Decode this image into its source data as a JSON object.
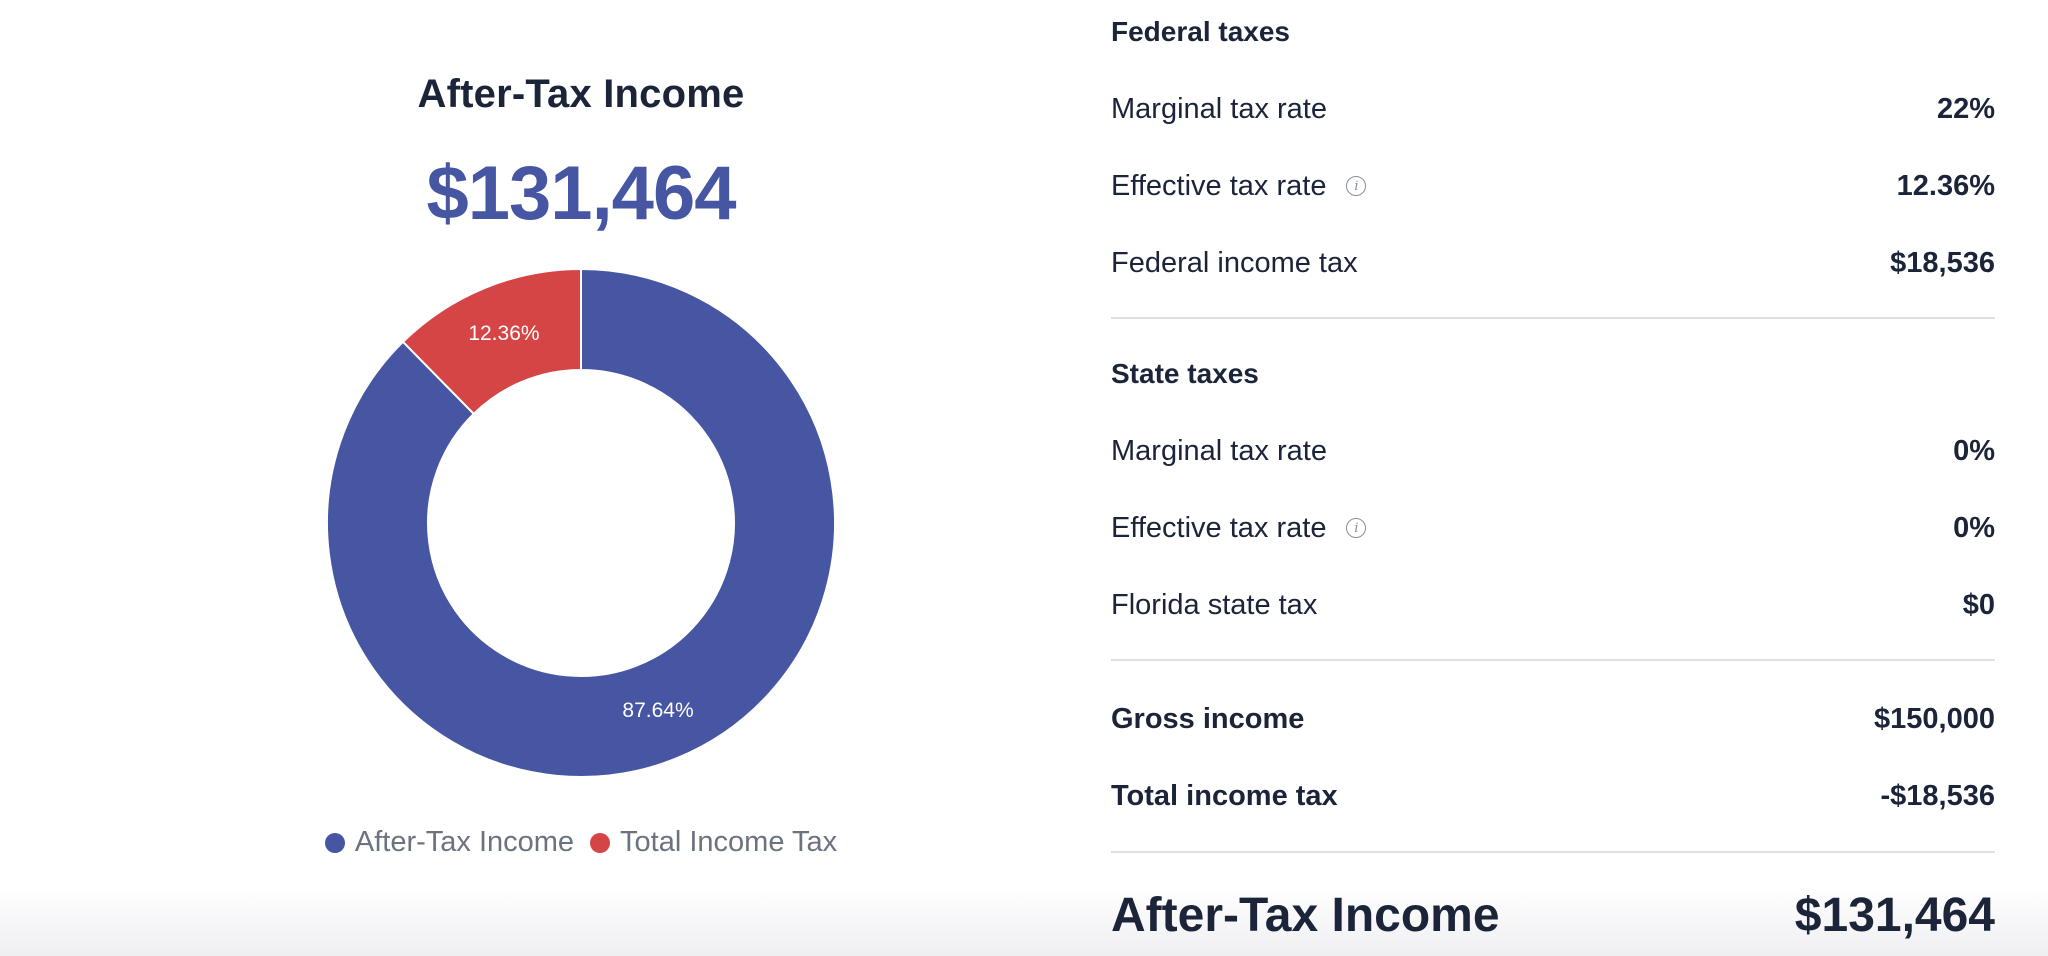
{
  "summary": {
    "title": "After-Tax Income",
    "total": "$131,464"
  },
  "chart_data": {
    "type": "pie",
    "donut": true,
    "categories": [
      "After-Tax Income",
      "Total Income Tax"
    ],
    "values": [
      87.64,
      12.36
    ],
    "labels": [
      "87.64%",
      "12.36%"
    ],
    "colors": [
      "#4656a2",
      "#d64545"
    ],
    "legend": "bottom"
  },
  "legend": {
    "items": [
      {
        "label": "After-Tax Income",
        "color": "#4656a2"
      },
      {
        "label": "Total Income Tax",
        "color": "#d64545"
      }
    ]
  },
  "federal": {
    "title": "Federal taxes",
    "rows": [
      {
        "label": "Marginal tax rate",
        "value": "22%"
      },
      {
        "label": "Effective tax rate",
        "value": "12.36%"
      },
      {
        "label": "Federal income tax",
        "value": "$18,536"
      }
    ]
  },
  "state": {
    "title": "State taxes",
    "rows": [
      {
        "label": "Marginal tax rate",
        "value": "0%"
      },
      {
        "label": "Effective tax rate",
        "value": "0%"
      },
      {
        "label": "Florida state tax",
        "value": "$0"
      }
    ]
  },
  "totals": {
    "rows": [
      {
        "label": "Gross income",
        "value": "$150,000"
      },
      {
        "label": "Total income tax",
        "value": "-$18,536"
      }
    ],
    "final_label": "After-Tax Income",
    "final_value": "$131,464"
  }
}
